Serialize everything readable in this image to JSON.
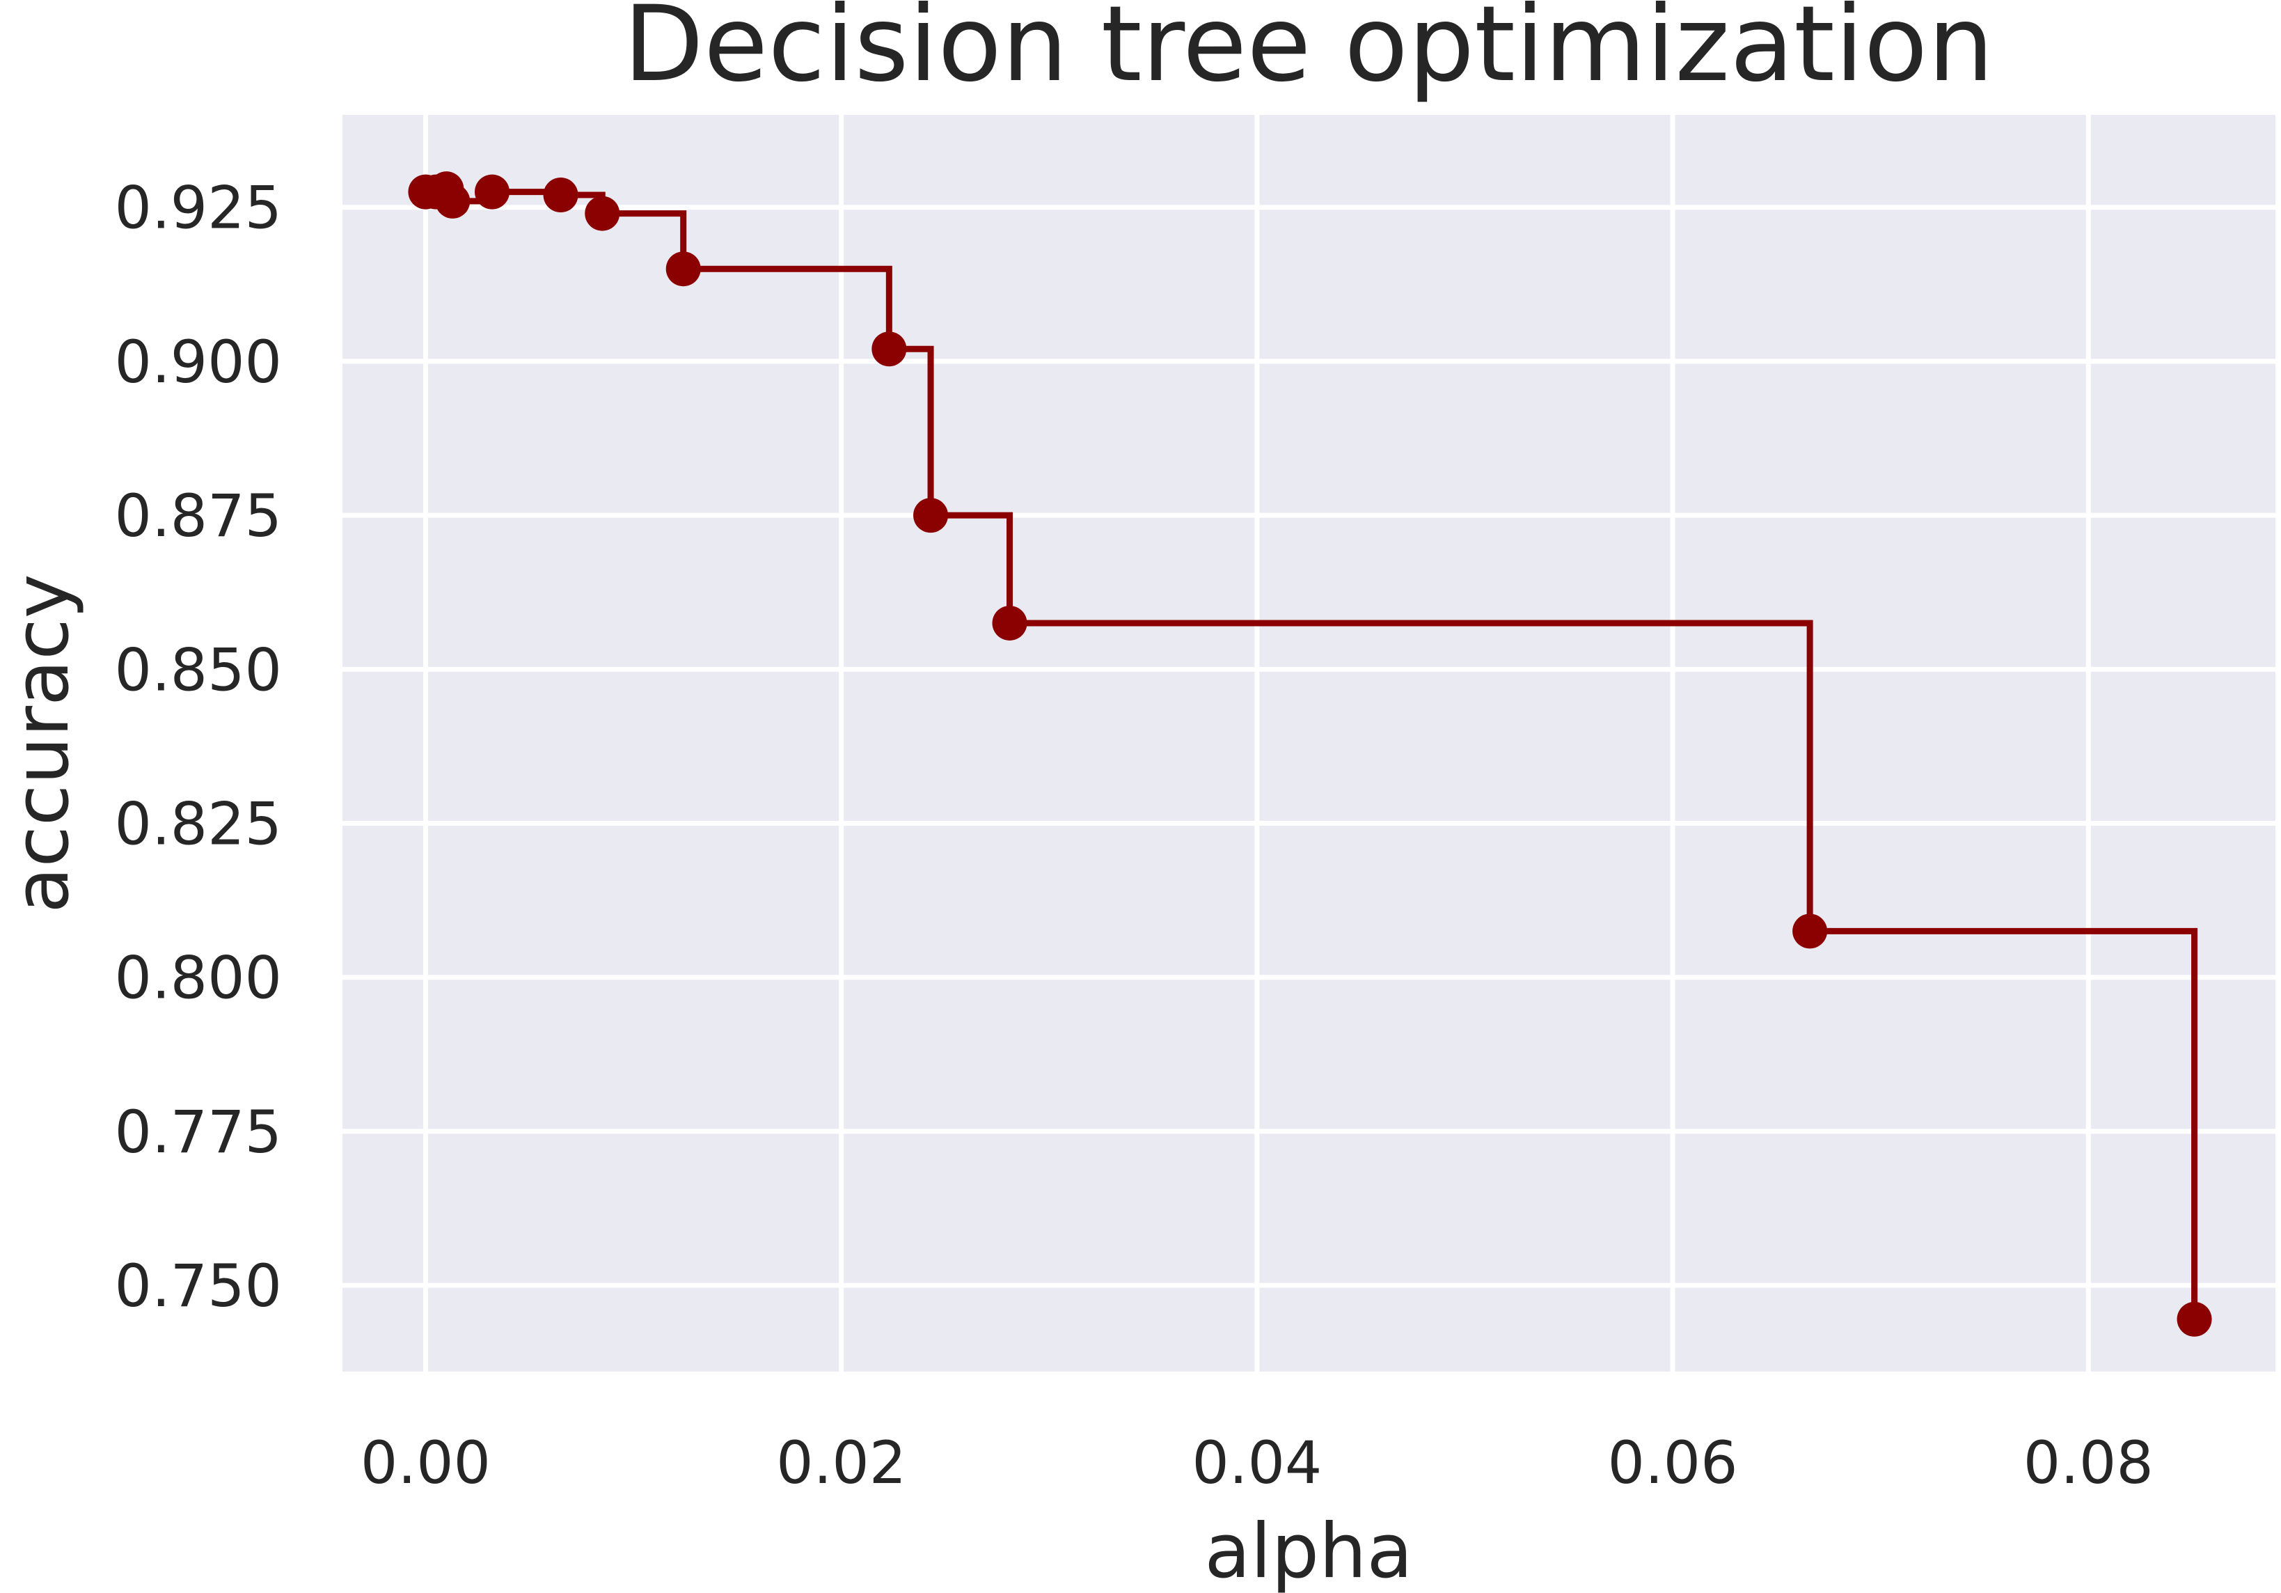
{
  "chart_data": {
    "type": "line",
    "drawstyle": "steps-post",
    "title": "Decision tree optimization",
    "xlabel": "alpha",
    "ylabel": "accuracy",
    "xlim": [
      -0.004,
      0.089
    ],
    "ylim": [
      0.736,
      0.94
    ],
    "xticks": [
      0.0,
      0.02,
      0.04,
      0.06,
      0.08
    ],
    "xtick_labels": [
      "0.00",
      "0.02",
      "0.04",
      "0.06",
      "0.08"
    ],
    "yticks": [
      0.75,
      0.775,
      0.8,
      0.825,
      0.85,
      0.875,
      0.9,
      0.925
    ],
    "ytick_labels": [
      "0.750",
      "0.775",
      "0.800",
      "0.825",
      "0.850",
      "0.875",
      "0.900",
      "0.925"
    ],
    "grid": true,
    "background": "#eaeaf2",
    "series": [
      {
        "color": "#8b0000",
        "marker": "circle",
        "x": [
          0.0,
          0.0005,
          0.001,
          0.0013,
          0.0032,
          0.0065,
          0.0085,
          0.0124,
          0.0223,
          0.0243,
          0.0281,
          0.0666,
          0.0851
        ],
        "y": [
          0.9275,
          0.9275,
          0.928,
          0.926,
          0.9275,
          0.927,
          0.924,
          0.915,
          0.902,
          0.875,
          0.8575,
          0.8075,
          0.7445
        ]
      }
    ]
  }
}
